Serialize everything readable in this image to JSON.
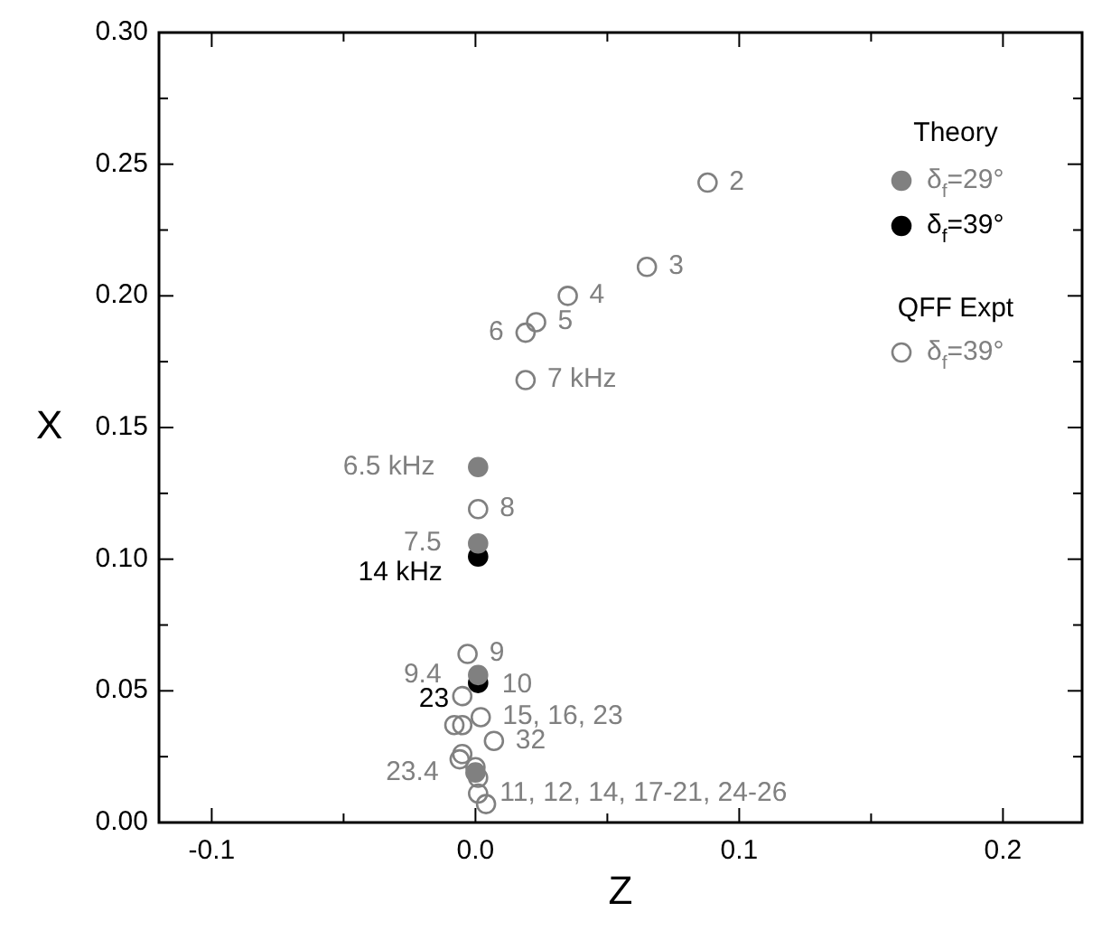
{
  "chart_data": {
    "type": "scatter",
    "xlabel": "Z",
    "ylabel": "X",
    "legend_title": "Theory",
    "xlim": [
      -0.12,
      0.23
    ],
    "ylim": [
      0,
      0.3
    ],
    "xticks": [
      {
        "value": -0.1,
        "label": "-0.1"
      },
      {
        "value": -0.05,
        "label": null
      },
      {
        "value": 0,
        "label": "0.0"
      },
      {
        "value": 0.05,
        "label": null
      },
      {
        "value": 0.1,
        "label": "0.1"
      },
      {
        "value": 0.15,
        "label": null
      },
      {
        "value": 0.2,
        "label": "0.2"
      }
    ],
    "yticks": [
      {
        "value": 0,
        "label": "0.00"
      },
      {
        "value": 0.025,
        "label": null
      },
      {
        "value": 0.05,
        "label": "0.05"
      },
      {
        "value": 0.075,
        "label": null
      },
      {
        "value": 0.1,
        "label": "0.10"
      },
      {
        "value": 0.125,
        "label": null
      },
      {
        "value": 0.15,
        "label": "0.15"
      },
      {
        "value": 0.175,
        "label": null
      },
      {
        "value": 0.2,
        "label": "0.20"
      },
      {
        "value": 0.225,
        "label": null
      },
      {
        "value": 0.25,
        "label": "0.25"
      },
      {
        "value": 0.275,
        "label": null
      },
      {
        "value": 0.3,
        "label": "0.30"
      }
    ],
    "grid": false,
    "legend": "top right",
    "marker": "circle",
    "series": [
      {
        "name": "δ$_{f}$=29°",
        "color": "#808080",
        "x": [
          0.001,
          0.001,
          0.001,
          0
        ],
        "values": [
          0.135,
          0.106,
          0.056,
          0.019
        ]
      },
      {
        "name": "δ$_{f}$=39°",
        "color": "#000000",
        "x": [
          0.001,
          0.001
        ],
        "values": [
          0.101,
          0.053
        ]
      },
      {
        "name": "δ$_{f}$=39°",
        "color": "#808080",
        "x": [
          0.088,
          0.065,
          0.035,
          0.023,
          0.019,
          0.019,
          0.001,
          -0.003,
          -0.005,
          0.002,
          -0.008,
          -0.005,
          0.007,
          -0.005,
          -0.006,
          0,
          0.001,
          0.001,
          0.004
        ],
        "values": [
          0.243,
          0.211,
          0.2,
          0.19,
          0.186,
          0.168,
          0.119,
          0.064,
          0.048,
          0.04,
          0.037,
          0.037,
          0.031,
          0.026,
          0.024,
          0.021,
          0.017,
          0.011,
          0.007
        ]
      }
    ],
    "annotations": [
      "QFF Expt",
      {
        "text": "6.5 kHz",
        "x": 0.001,
        "y": 0.135
      },
      {
        "text": "7.5",
        "x": 0.001,
        "y": 0.106
      },
      {
        "text": "14 kHz",
        "x": 0.001,
        "y": 0.101
      },
      {
        "text": "9.4",
        "x": 0.001,
        "y": 0.056
      },
      {
        "text": "23",
        "x": 0.001,
        "y": 0.053
      },
      {
        "text": "23.4",
        "x": 0,
        "y": 0.019
      },
      {
        "text": "2",
        "x": 0.088,
        "y": 0.243
      },
      {
        "text": "3",
        "x": 0.065,
        "y": 0.211
      },
      {
        "text": "4",
        "x": 0.035,
        "y": 0.2
      },
      {
        "text": "5",
        "x": 0.023,
        "y": 0.19
      },
      {
        "text": "6",
        "x": 0.019,
        "y": 0.186
      },
      {
        "text": "7 kHz",
        "x": 0.019,
        "y": 0.168
      },
      {
        "text": "8",
        "x": 0.001,
        "y": 0.119
      },
      {
        "text": "9",
        "x": -0.003,
        "y": 0.064
      },
      {
        "text": "10",
        "x": -0.005,
        "y": 0.048
      },
      {
        "text": "32",
        "x": 0.007,
        "y": 0.031
      },
      {
        "text": "15, 16, 23",
        "x": 0.002,
        "y": 0.04
      },
      {
        "text": "11, 12, 14, 17-21, 24-26",
        "x": 0.001,
        "y": 0.011
      }
    ]
  }
}
